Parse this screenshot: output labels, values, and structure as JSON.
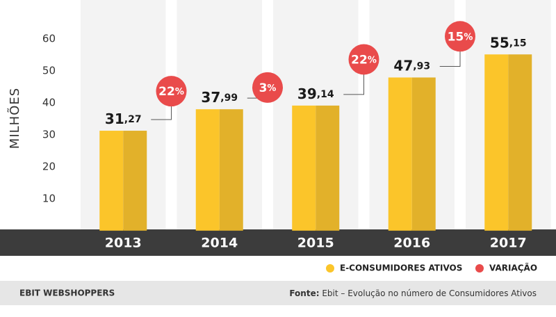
{
  "chart_data": {
    "type": "bar",
    "y_axis_label": "MILHÕES",
    "categories": [
      "2013",
      "2014",
      "2015",
      "2016",
      "2017"
    ],
    "series": [
      {
        "name": "E-CONSUMIDORES ATIVOS",
        "color": "#fbc52a",
        "shade": "#e2b12a",
        "values": [
          31.27,
          37.99,
          39.14,
          47.93,
          55.15
        ],
        "value_labels": [
          "31,27",
          "37,99",
          "39,14",
          "47,93",
          "55,15"
        ]
      },
      {
        "name": "VARIAÇÃO",
        "color": "#e94b4b",
        "values": [
          null,
          22,
          3,
          22,
          15
        ],
        "value_labels": [
          null,
          "22%",
          "3%",
          "22%",
          "15%"
        ]
      }
    ],
    "ylim": [
      0,
      70
    ],
    "yticks": [
      10,
      20,
      30,
      40,
      50,
      60
    ],
    "footer_left": "EBIT WEBSHOPPERS",
    "source_label": "Fonte:",
    "source": "Ebit – Evolução no número de Consumidores Ativos"
  }
}
